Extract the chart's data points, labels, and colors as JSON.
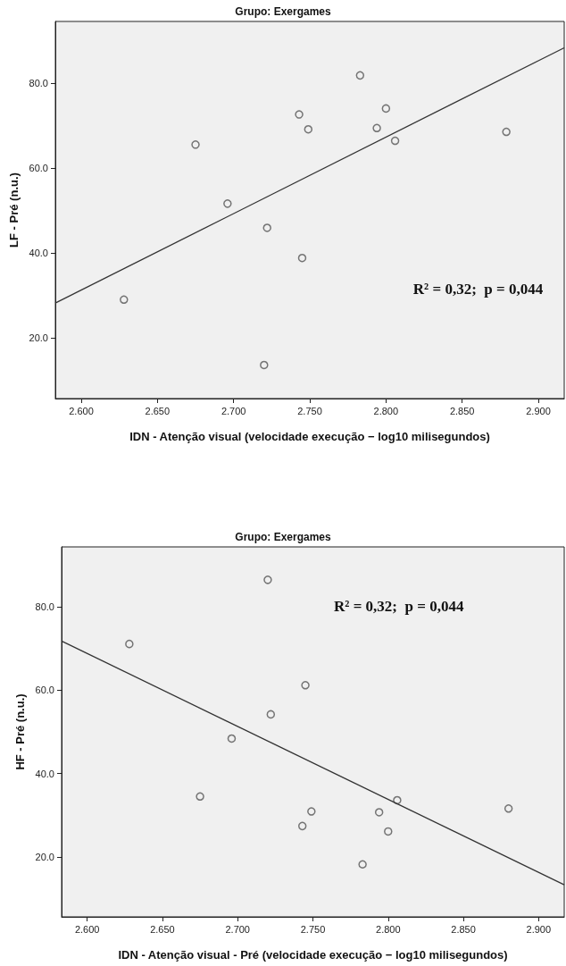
{
  "chart_data": [
    {
      "type": "scatter",
      "title": "Grupo: Exergames",
      "xlabel": "IDN - Atenção visual (velocidade execução − log10 milisegundos)",
      "ylabel": "LF - Pré (n.u.)",
      "annotations": [
        "R² = 0,32;  p = 0,044"
      ],
      "marker": "circle",
      "grid": false,
      "xlim": [
        2.583,
        2.917
      ],
      "ylim": [
        5.7,
        94.5
      ],
      "xticks": [
        {
          "value": 2.6,
          "label": "2.600"
        },
        {
          "value": 2.65,
          "label": "2.650"
        },
        {
          "value": 2.7,
          "label": "2.700"
        },
        {
          "value": 2.75,
          "label": "2.750"
        },
        {
          "value": 2.8,
          "label": "2.800"
        },
        {
          "value": 2.85,
          "label": "2.850"
        },
        {
          "value": 2.9,
          "label": "2.900"
        }
      ],
      "yticks": [
        {
          "value": 20,
          "label": "20.0"
        },
        {
          "value": 40,
          "label": "40.0"
        },
        {
          "value": 60,
          "label": "60.0"
        },
        {
          "value": 80,
          "label": "80.0"
        }
      ],
      "series": [
        {
          "type": "scatter",
          "color": "#555555",
          "x": [
            2.628,
            2.675,
            2.696,
            2.72,
            2.722,
            2.743,
            2.745,
            2.749,
            2.783,
            2.794,
            2.8,
            2.806,
            2.879
          ],
          "values": [
            29.0,
            65.5,
            51.6,
            13.6,
            45.9,
            72.6,
            38.8,
            69.1,
            81.8,
            69.4,
            74.0,
            66.4,
            68.5
          ]
        },
        {
          "type": "line",
          "marker": "none",
          "color": "#333333",
          "x": [
            2.583,
            2.917
          ],
          "values": [
            28.2,
            88.3
          ]
        }
      ]
    },
    {
      "type": "scatter",
      "title": "Grupo: Exergames",
      "xlabel": "IDN - Atenção visual - Pré (velocidade execução − log10 milisegundos)",
      "ylabel": "HF - Pré (n.u.)",
      "annotations": [
        "R² = 0,32;  p = 0,044"
      ],
      "marker": "circle",
      "grid": false,
      "xlim": [
        2.583,
        2.917
      ],
      "ylim": [
        5.6,
        94.4
      ],
      "xticks": [
        {
          "value": 2.6,
          "label": "2.600"
        },
        {
          "value": 2.65,
          "label": "2.650"
        },
        {
          "value": 2.7,
          "label": "2.700"
        },
        {
          "value": 2.75,
          "label": "2.750"
        },
        {
          "value": 2.8,
          "label": "2.800"
        },
        {
          "value": 2.85,
          "label": "2.850"
        },
        {
          "value": 2.9,
          "label": "2.900"
        }
      ],
      "yticks": [
        {
          "value": 20,
          "label": "20.0"
        },
        {
          "value": 40,
          "label": "40.0"
        },
        {
          "value": 60,
          "label": "60.0"
        },
        {
          "value": 80,
          "label": "80.0"
        }
      ],
      "series": [
        {
          "type": "scatter",
          "color": "#555555",
          "x": [
            2.628,
            2.72,
            2.745,
            2.722,
            2.696,
            2.675,
            2.749,
            2.743,
            2.794,
            2.806,
            2.8,
            2.783,
            2.88
          ],
          "values": [
            71.1,
            86.5,
            61.2,
            54.2,
            48.4,
            34.5,
            30.9,
            27.4,
            30.7,
            33.6,
            26.1,
            18.2,
            31.6
          ]
        },
        {
          "type": "line",
          "marker": "none",
          "color": "#333333",
          "x": [
            2.583,
            2.917
          ],
          "values": [
            71.8,
            13.3
          ]
        }
      ]
    }
  ]
}
